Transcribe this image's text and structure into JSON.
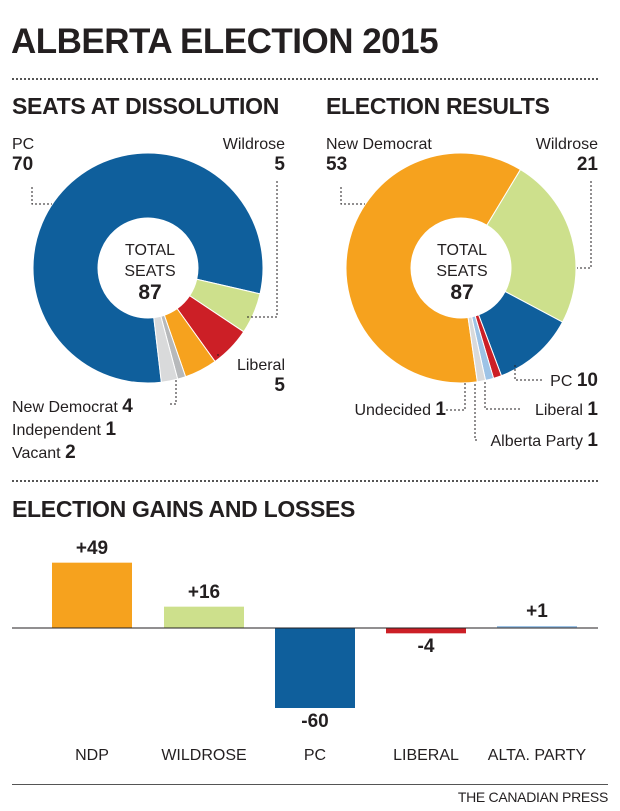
{
  "title": "ALBERTA ELECTION 2015",
  "credit": "THE CANADIAN PRESS",
  "colors": {
    "pc": "#0f5f9c",
    "ndp": "#f6a21e",
    "wildrose": "#cde08c",
    "liberal": "#cc1f26",
    "alberta_party": "#9dc3e6",
    "grey": "#b7b9bb",
    "light_grey": "#d9dadb"
  },
  "dissolution": {
    "title": "SEATS AT DISSOLUTION",
    "center_line1": "TOTAL",
    "center_line2": "SEATS",
    "center_total": "87",
    "labels": {
      "pc_name": "PC",
      "pc_value": "70",
      "wildrose_name": "Wildrose",
      "wildrose_value": "5",
      "liberal_name": "Liberal",
      "liberal_value": "5",
      "ndp_name": "New Democrat",
      "ndp_value": "4",
      "independent_name": "Independent",
      "independent_value": "1",
      "vacant_name": "Vacant",
      "vacant_value": "2"
    }
  },
  "results": {
    "title": "ELECTION RESULTS",
    "center_line1": "TOTAL",
    "center_line2": "SEATS",
    "center_total": "87",
    "labels": {
      "ndp_name": "New Democrat",
      "ndp_value": "53",
      "wildrose_name": "Wildrose",
      "wildrose_value": "21",
      "pc_name": "PC",
      "pc_value": "10",
      "liberal_name": "Liberal",
      "liberal_value": "1",
      "undecided_name": "Undecided",
      "undecided_value": "1",
      "alberta_party_name": "Alberta Party",
      "alberta_party_value": "1"
    }
  },
  "gains": {
    "title": "ELECTION GAINS AND LOSSES"
  },
  "chart_data": [
    {
      "type": "pie",
      "title": "SEATS AT DISSOLUTION",
      "total": 87,
      "slices": [
        {
          "name": "PC",
          "value": 70,
          "color": "#0f5f9c"
        },
        {
          "name": "Wildrose",
          "value": 5,
          "color": "#cde08c"
        },
        {
          "name": "Liberal",
          "value": 5,
          "color": "#cc1f26"
        },
        {
          "name": "New Democrat",
          "value": 4,
          "color": "#f6a21e"
        },
        {
          "name": "Independent",
          "value": 1,
          "color": "#b7b9bb"
        },
        {
          "name": "Vacant",
          "value": 2,
          "color": "#d9dadb"
        }
      ]
    },
    {
      "type": "pie",
      "title": "ELECTION RESULTS",
      "total": 87,
      "slices": [
        {
          "name": "New Democrat",
          "value": 53,
          "color": "#f6a21e"
        },
        {
          "name": "Wildrose",
          "value": 21,
          "color": "#cde08c"
        },
        {
          "name": "PC",
          "value": 10,
          "color": "#0f5f9c"
        },
        {
          "name": "Liberal",
          "value": 1,
          "color": "#cc1f26"
        },
        {
          "name": "Alberta Party",
          "value": 1,
          "color": "#9dc3e6"
        },
        {
          "name": "Undecided",
          "value": 1,
          "color": "#d9dadb"
        }
      ]
    },
    {
      "type": "bar",
      "title": "ELECTION GAINS AND LOSSES",
      "categories": [
        "NDP",
        "WILDROSE",
        "PC",
        "LIBERAL",
        "ALTA. PARTY"
      ],
      "values": [
        49,
        16,
        -60,
        -4,
        1
      ],
      "value_labels": [
        "+49",
        "+16",
        "-60",
        "-4",
        "+1"
      ],
      "colors": [
        "#f6a21e",
        "#cde08c",
        "#0f5f9c",
        "#cc1f26",
        "#9dc3e6"
      ]
    }
  ]
}
